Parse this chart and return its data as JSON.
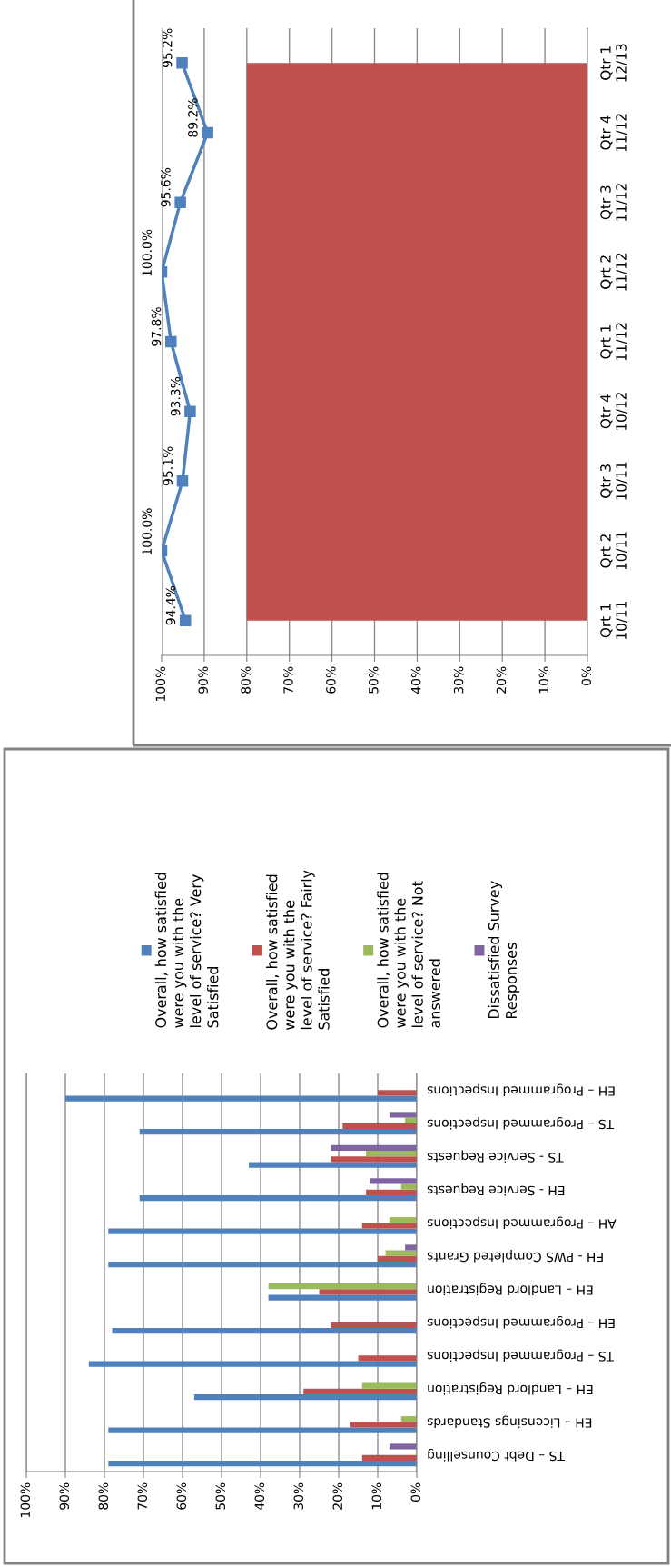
{
  "chart_data": [
    {
      "type": "line",
      "orientation": "horizontal",
      "categories": [
        "Qtr 1\n12/13",
        "Qtr 4\n11/12",
        "Qtr 3\n11/12",
        "Qrt 2\n11/12",
        "Qrt 1\n11/12",
        "Qtr 4\n10/12",
        "Qtr 3\n10/11",
        "Qrt 2\n10/11",
        "Qrt 1\n10/11"
      ],
      "series": [
        {
          "color": "#4f81bd",
          "values": [
            95.2,
            89.2,
            95.6,
            100.0,
            97.8,
            93.3,
            95.1,
            100.0,
            94.4
          ],
          "value_labels": [
            "95.2%",
            "89.2%",
            "95.6%",
            "100.0%",
            "97.8%",
            "93.3%",
            "95.1%",
            "100.0%",
            "94.4%"
          ]
        }
      ],
      "bands": [
        {
          "axis": "x",
          "from": 0,
          "to": 80,
          "color": "#c0504d"
        }
      ],
      "xlim": [
        100,
        0
      ],
      "xticks": [
        {
          "value": 100,
          "label": "100%"
        },
        {
          "value": 90,
          "label": "90%"
        },
        {
          "value": 80,
          "label": "80%"
        },
        {
          "value": 70,
          "label": "70%"
        },
        {
          "value": 60,
          "label": "60%"
        },
        {
          "value": 50,
          "label": "50%"
        },
        {
          "value": 40,
          "label": "40%"
        },
        {
          "value": 30,
          "label": "30%"
        },
        {
          "value": 20,
          "label": "20%"
        },
        {
          "value": 10,
          "label": "10%"
        },
        {
          "value": 0,
          "label": "0%"
        }
      ],
      "grid": "x",
      "marker": "square",
      "line_style": "solid"
    },
    {
      "type": "bar",
      "orientation": "horizontal",
      "categories": [
        "EH – Programmed Inspections",
        "TS – Programmed Inspections",
        "TS - Service Requests",
        "EH - Service Requests",
        "AH – Programmed Inspections",
        "EH - PWS Completed Grants",
        "EH – Landlord Registration",
        "EH – Programmed Inspections",
        "TS – Programmed Inspections",
        "EH – Landlord Registration",
        "EH – Licensings Standards",
        "TS – Debt Counselling"
      ],
      "series": [
        {
          "name": "Overall, how satisfied were you with the level of service? Very Satisfied",
          "color": "#4f81bd",
          "values": [
            90,
            71,
            43,
            71,
            79,
            79,
            38,
            78,
            84,
            57,
            79,
            79
          ]
        },
        {
          "name": "Overall, how satisfied were you with the level of service? Fairly Satisfied",
          "color": "#c0504d",
          "values": [
            10,
            19,
            22,
            13,
            14,
            10,
            25,
            22,
            15,
            29,
            17,
            14
          ]
        },
        {
          "name": "Overall, how satisfied were you with the level of service? Not answered",
          "color": "#9bbb59",
          "values": [
            null,
            3,
            13,
            4,
            7,
            8,
            38,
            null,
            null,
            14,
            4,
            null
          ]
        },
        {
          "name": "Dissatisfied Survey Responses",
          "color": "#8064a2",
          "values": [
            null,
            7,
            22,
            12,
            null,
            3,
            null,
            null,
            null,
            null,
            null,
            7
          ]
        }
      ],
      "xlim": [
        100,
        0
      ],
      "xticks": [
        {
          "value": 100,
          "label": "100%"
        },
        {
          "value": 90,
          "label": "90%"
        },
        {
          "value": 80,
          "label": "80%"
        },
        {
          "value": 70,
          "label": "70%"
        },
        {
          "value": 60,
          "label": "60%"
        },
        {
          "value": 50,
          "label": "50%"
        },
        {
          "value": 40,
          "label": "40%"
        },
        {
          "value": 30,
          "label": "30%"
        },
        {
          "value": 20,
          "label": "20%"
        },
        {
          "value": 10,
          "label": "10%"
        },
        {
          "value": 0,
          "label": "0%"
        }
      ],
      "grid": "x",
      "legend": "top"
    }
  ]
}
